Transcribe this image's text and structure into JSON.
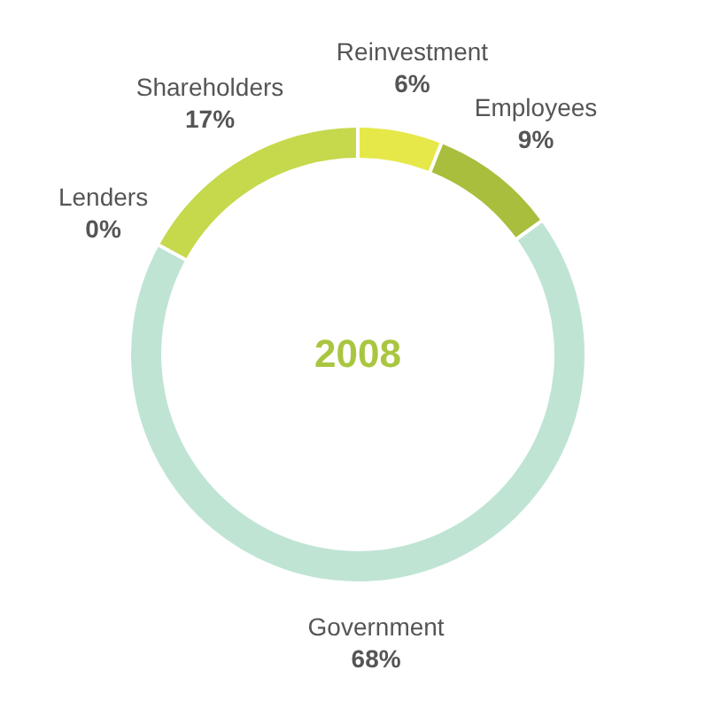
{
  "chart_data": {
    "type": "donut",
    "categories": [
      "Reinvestment",
      "Employees",
      "Government",
      "Lenders",
      "Shareholders"
    ],
    "values": [
      6,
      9,
      68,
      0,
      17
    ],
    "colors": [
      "#e6e84a",
      "#a9be3c",
      "#bfe4d4",
      "#b5cf48",
      "#c6d84c"
    ],
    "value_labels": [
      "6%",
      "9%",
      "68%",
      "0%",
      "17%"
    ],
    "annotations": [
      "2008"
    ]
  }
}
